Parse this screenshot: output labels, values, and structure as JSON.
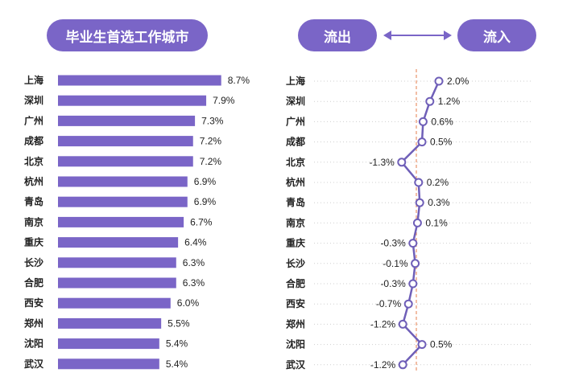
{
  "header": {
    "title": "毕业生首选工作城市",
    "outflow_label": "流出",
    "inflow_label": "流入",
    "arrow_icon": "double-arrow-icon"
  },
  "colors": {
    "accent": "#7a65c7",
    "line": "#6f5fb8",
    "reference_line": "#e8926a",
    "grid_dots": "#cfcfcf"
  },
  "chart_data": [
    {
      "type": "bar",
      "orientation": "horizontal",
      "title": "毕业生首选工作城市",
      "categories": [
        "上海",
        "深圳",
        "广州",
        "成都",
        "北京",
        "杭州",
        "青岛",
        "南京",
        "重庆",
        "长沙",
        "合肥",
        "西安",
        "郑州",
        "沈阳",
        "武汉"
      ],
      "values": [
        8.7,
        7.9,
        7.3,
        7.2,
        7.2,
        6.9,
        6.9,
        6.7,
        6.4,
        6.3,
        6.3,
        6.0,
        5.5,
        5.4,
        5.4
      ],
      "value_labels": [
        "8.7%",
        "7.9%",
        "7.3%",
        "7.2%",
        "7.2%",
        "6.9%",
        "6.9%",
        "6.7%",
        "6.4%",
        "6.3%",
        "6.3%",
        "6.0%",
        "5.5%",
        "5.4%",
        "5.4%"
      ],
      "unit": "%"
    },
    {
      "type": "line",
      "title": "流出 ↔ 流入",
      "left_label": "流出",
      "right_label": "流入",
      "categories": [
        "上海",
        "深圳",
        "广州",
        "成都",
        "北京",
        "杭州",
        "青岛",
        "南京",
        "重庆",
        "长沙",
        "合肥",
        "西安",
        "郑州",
        "沈阳",
        "武汉"
      ],
      "values": [
        2.0,
        1.2,
        0.6,
        0.5,
        -1.3,
        0.2,
        0.3,
        0.1,
        -0.3,
        -0.1,
        -0.3,
        -0.7,
        -1.2,
        0.5,
        -1.2
      ],
      "value_labels": [
        "2.0%",
        "1.2%",
        "0.6%",
        "0.5%",
        "-1.3%",
        "0.2%",
        "0.3%",
        "0.1%",
        "-0.3%",
        "-0.1%",
        "-0.3%",
        "-0.7%",
        "-1.2%",
        "0.5%",
        "-1.2%"
      ],
      "reference_value": 0,
      "unit": "%"
    }
  ]
}
